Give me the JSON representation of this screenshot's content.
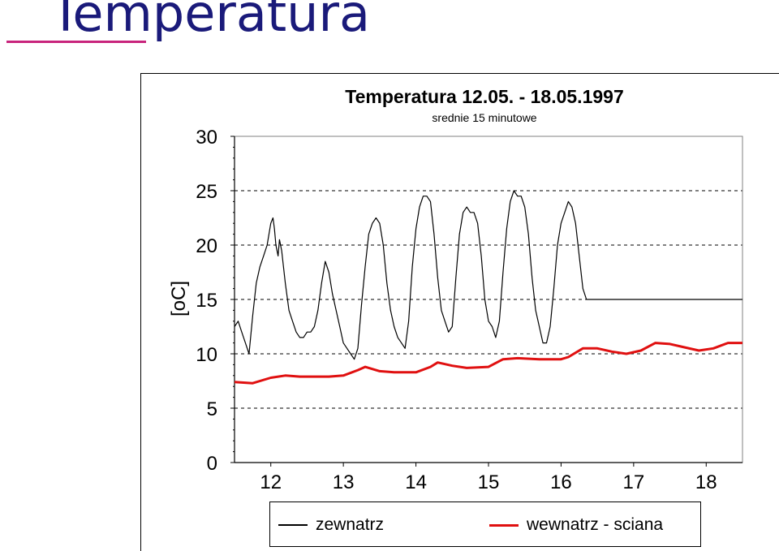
{
  "slide": {
    "title": "Temperatura"
  },
  "chart_data": {
    "type": "line",
    "title": "Temperatura 12.05. - 18.05.1997",
    "subtitle": "srednie 15 minutowe",
    "ylabel": "[oC]",
    "xlabel": "",
    "ylim": [
      0,
      30
    ],
    "xlim": [
      11.5,
      18.5
    ],
    "y_ticks": [
      "0",
      "5",
      "10",
      "15",
      "20",
      "25",
      "30"
    ],
    "x_ticks": [
      "12",
      "13",
      "14",
      "15",
      "16",
      "17",
      "18"
    ],
    "grid": "horizontal-dashed",
    "legend_position": "bottom",
    "series": [
      {
        "name": "zewnatrz",
        "color": "#000000",
        "x": [
          11.5,
          11.55,
          11.6,
          11.65,
          11.7,
          11.75,
          11.8,
          11.85,
          11.9,
          11.95,
          12.0,
          12.03,
          12.05,
          12.07,
          12.1,
          12.12,
          12.15,
          12.2,
          12.25,
          12.3,
          12.35,
          12.4,
          12.45,
          12.5,
          12.55,
          12.6,
          12.65,
          12.7,
          12.75,
          12.8,
          12.85,
          12.9,
          12.95,
          13.0,
          13.05,
          13.1,
          13.15,
          13.2,
          13.25,
          13.3,
          13.35,
          13.4,
          13.45,
          13.5,
          13.55,
          13.6,
          13.65,
          13.7,
          13.75,
          13.8,
          13.85,
          13.9,
          13.95,
          14.0,
          14.05,
          14.1,
          14.15,
          14.2,
          14.25,
          14.3,
          14.35,
          14.4,
          14.45,
          14.5,
          14.55,
          14.6,
          14.65,
          14.7,
          14.75,
          14.8,
          14.85,
          14.9,
          14.95,
          15.0,
          15.05,
          15.1,
          15.15,
          15.2,
          15.25,
          15.3,
          15.35,
          15.4,
          15.45,
          15.5,
          15.55,
          15.6,
          15.65,
          15.7,
          15.75,
          15.8,
          15.85,
          15.9,
          15.95,
          16.0,
          16.05,
          16.1,
          16.15,
          16.2,
          16.25,
          16.3,
          16.35,
          16.4,
          16.45,
          16.5,
          16.55,
          16.6,
          16.65,
          16.7,
          16.75,
          16.8,
          16.85,
          16.9,
          16.95,
          17.0,
          17.05,
          17.1,
          17.15,
          17.2,
          17.25,
          17.3,
          17.35,
          17.4,
          17.45,
          17.5,
          17.55,
          17.6,
          17.65,
          17.7,
          17.75,
          17.8,
          17.85,
          17.9,
          17.95,
          18.0,
          18.05,
          18.1,
          18.15,
          18.2,
          18.25,
          18.3,
          18.35,
          18.4,
          18.45,
          18.5
        ],
        "values": [
          12.5,
          13.0,
          12.0,
          11.0,
          10.0,
          13.5,
          16.5,
          18.0,
          19.0,
          20.0,
          22.0,
          22.5,
          21.5,
          20.0,
          19.0,
          20.5,
          19.5,
          16.5,
          14.0,
          13.0,
          12.0,
          11.5,
          11.5,
          12.0,
          12.0,
          12.5,
          14.0,
          16.5,
          18.5,
          17.5,
          15.5,
          14.0,
          12.5,
          11.0,
          10.5,
          10.0,
          9.5,
          10.5,
          14.5,
          18.0,
          21.0,
          22.0,
          22.5,
          22.0,
          20.0,
          16.5,
          14.0,
          12.5,
          11.5,
          11.0,
          10.5,
          13.0,
          18.0,
          21.5,
          23.5,
          24.5,
          24.5,
          24.0,
          21.0,
          17.0,
          14.0,
          13.0,
          12.0,
          12.5,
          17.0,
          21.0,
          23.0,
          23.5,
          23.0,
          23.0,
          22.0,
          19.0,
          15.0,
          13.0,
          12.5,
          11.5,
          13.0,
          17.5,
          21.5,
          24.0,
          25.0,
          24.5,
          24.5,
          23.5,
          21.0,
          17.0,
          14.0,
          12.5,
          11.0,
          11.0,
          12.5,
          16.0,
          20.0,
          22.0,
          23.0,
          24.0,
          23.5,
          22.0,
          19.0,
          16.0,
          15.0,
          15.0,
          15.0,
          15.0,
          15.0,
          15.0,
          15.0,
          15.0,
          15.0,
          15.0,
          15.0,
          15.0,
          15.0,
          15.0,
          15.0,
          15.0,
          15.0,
          15.0,
          15.0,
          15.0,
          15.0,
          15.0,
          15.0,
          15.0,
          15.0,
          15.0,
          15.0,
          15.0,
          15.0,
          15.0,
          15.0,
          15.0,
          15.0,
          15.0,
          15.0,
          15.0,
          15.0,
          15.0,
          15.0,
          15.0,
          15.0,
          15.0,
          15.0,
          15.0
        ]
      },
      {
        "name": "wewnatrz - sciana",
        "color": "#e01010",
        "x": [
          11.5,
          11.75,
          12.0,
          12.2,
          12.4,
          12.6,
          12.8,
          13.0,
          13.2,
          13.3,
          13.5,
          13.7,
          14.0,
          14.2,
          14.3,
          14.5,
          14.7,
          15.0,
          15.2,
          15.4,
          15.7,
          16.0,
          16.1,
          16.3,
          16.5,
          16.7,
          16.9,
          17.1,
          17.3,
          17.5,
          17.7,
          17.9,
          18.1,
          18.3,
          18.5
        ],
        "values": [
          7.4,
          7.3,
          7.8,
          8.0,
          7.9,
          7.9,
          7.9,
          8.0,
          8.5,
          8.8,
          8.4,
          8.3,
          8.3,
          8.8,
          9.2,
          8.9,
          8.7,
          8.8,
          9.5,
          9.6,
          9.5,
          9.5,
          9.7,
          10.5,
          10.5,
          10.2,
          10.0,
          10.3,
          11.0,
          10.9,
          10.6,
          10.3,
          10.5,
          11.0,
          11.0
        ]
      }
    ]
  }
}
